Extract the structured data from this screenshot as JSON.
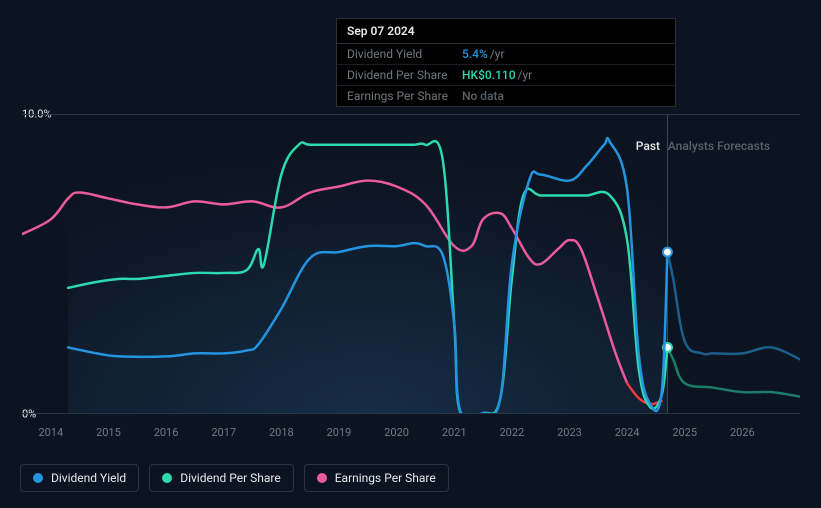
{
  "tooltip": {
    "date": "Sep 07 2024",
    "rows": [
      {
        "label": "Dividend Yield",
        "value": "5.4%",
        "suffix": "/yr",
        "color_class": "val-blue"
      },
      {
        "label": "Dividend Per Share",
        "value": "HK$0.110",
        "suffix": "/yr",
        "color_class": "val-teal"
      },
      {
        "label": "Earnings Per Share",
        "value": "No data",
        "suffix": "",
        "color_class": "val-gray"
      }
    ]
  },
  "chart": {
    "type": "line",
    "background_color": "#0d1421",
    "grid_color": "#2a3644",
    "yaxis": {
      "min": 0,
      "max": 10,
      "ticks": [
        {
          "v": 10,
          "label": "10.0%"
        },
        {
          "v": 0,
          "label": "0%"
        }
      ]
    },
    "xaxis": {
      "min": 2013.5,
      "max": 2027,
      "past_end": 2024.7,
      "ticks": [
        {
          "v": 2014,
          "label": "2014"
        },
        {
          "v": 2015,
          "label": "2015"
        },
        {
          "v": 2016,
          "label": "2016"
        },
        {
          "v": 2017,
          "label": "2017"
        },
        {
          "v": 2018,
          "label": "2018"
        },
        {
          "v": 2019,
          "label": "2019"
        },
        {
          "v": 2020,
          "label": "2020"
        },
        {
          "v": 2021,
          "label": "2021"
        },
        {
          "v": 2022,
          "label": "2022"
        },
        {
          "v": 2023,
          "label": "2023"
        },
        {
          "v": 2024,
          "label": "2024"
        },
        {
          "v": 2025,
          "label": "2025"
        },
        {
          "v": 2026,
          "label": "2026"
        }
      ]
    },
    "period_labels": {
      "past": "Past",
      "forecast": "Analysts Forecasts"
    },
    "series": [
      {
        "name": "Dividend Yield",
        "color": "#2394df",
        "forecast_color": "#1b5f8c",
        "line_width": 2.5,
        "points": [
          [
            2014.3,
            2.2
          ],
          [
            2014.8,
            2.0
          ],
          [
            2015.2,
            1.9
          ],
          [
            2016.0,
            1.9
          ],
          [
            2016.5,
            2.0
          ],
          [
            2017.0,
            2.0
          ],
          [
            2017.4,
            2.1
          ],
          [
            2017.6,
            2.3
          ],
          [
            2018.0,
            3.5
          ],
          [
            2018.5,
            5.2
          ],
          [
            2019.0,
            5.4
          ],
          [
            2019.5,
            5.6
          ],
          [
            2020.0,
            5.6
          ],
          [
            2020.3,
            5.7
          ],
          [
            2020.5,
            5.6
          ],
          [
            2020.8,
            5.3
          ],
          [
            2021.0,
            3.0
          ],
          [
            2021.1,
            0.1
          ],
          [
            2021.5,
            0.0
          ],
          [
            2021.8,
            0.5
          ],
          [
            2022.0,
            5.0
          ],
          [
            2022.3,
            7.8
          ],
          [
            2022.5,
            8.0
          ],
          [
            2023.0,
            7.8
          ],
          [
            2023.3,
            8.3
          ],
          [
            2023.6,
            9.0
          ],
          [
            2023.7,
            9.1
          ],
          [
            2024.0,
            7.5
          ],
          [
            2024.2,
            2.0
          ],
          [
            2024.4,
            0.3
          ],
          [
            2024.6,
            0.7
          ],
          [
            2024.7,
            5.4
          ]
        ],
        "forecast_points": [
          [
            2024.7,
            5.4
          ],
          [
            2024.8,
            4.5
          ],
          [
            2025.0,
            2.4
          ],
          [
            2025.3,
            2.0
          ],
          [
            2025.5,
            2.0
          ],
          [
            2026.0,
            2.0
          ],
          [
            2026.5,
            2.2
          ],
          [
            2027.0,
            1.8
          ]
        ],
        "marker": [
          2024.7,
          5.4
        ]
      },
      {
        "name": "Dividend Per Share",
        "color": "#2dd9b0",
        "forecast_color": "#1a7d67",
        "line_width": 2.5,
        "points": [
          [
            2014.3,
            4.2
          ],
          [
            2014.8,
            4.4
          ],
          [
            2015.2,
            4.5
          ],
          [
            2015.5,
            4.5
          ],
          [
            2016.0,
            4.6
          ],
          [
            2016.5,
            4.7
          ],
          [
            2017.0,
            4.7
          ],
          [
            2017.4,
            4.8
          ],
          [
            2017.6,
            5.5
          ],
          [
            2017.7,
            5.0
          ],
          [
            2018.0,
            8.0
          ],
          [
            2018.3,
            9.0
          ],
          [
            2018.5,
            9.0
          ],
          [
            2019.0,
            9.0
          ],
          [
            2019.5,
            9.0
          ],
          [
            2020.0,
            9.0
          ],
          [
            2020.3,
            9.0
          ],
          [
            2020.5,
            9.0
          ],
          [
            2020.8,
            8.5
          ],
          [
            2021.0,
            3.0
          ],
          [
            2021.1,
            0.05
          ],
          [
            2021.5,
            0.0
          ],
          [
            2021.8,
            0.5
          ],
          [
            2022.0,
            4.5
          ],
          [
            2022.2,
            7.3
          ],
          [
            2022.5,
            7.3
          ],
          [
            2023.0,
            7.3
          ],
          [
            2023.3,
            7.3
          ],
          [
            2023.7,
            7.3
          ],
          [
            2024.0,
            5.8
          ],
          [
            2024.2,
            1.5
          ],
          [
            2024.4,
            0.2
          ],
          [
            2024.6,
            0.6
          ],
          [
            2024.7,
            2.2
          ]
        ],
        "forecast_points": [
          [
            2024.7,
            2.2
          ],
          [
            2024.8,
            1.8
          ],
          [
            2025.0,
            1.0
          ],
          [
            2025.5,
            0.85
          ],
          [
            2026.0,
            0.7
          ],
          [
            2026.5,
            0.7
          ],
          [
            2027.0,
            0.55
          ]
        ],
        "marker": [
          2024.7,
          2.2
        ]
      },
      {
        "name": "Earnings Per Share",
        "color": "#eb5b9d",
        "forecast_color": "#eb3b3b",
        "line_width": 2.5,
        "points": [
          [
            2013.5,
            6.0
          ],
          [
            2014.0,
            6.5
          ],
          [
            2014.3,
            7.2
          ],
          [
            2014.5,
            7.4
          ],
          [
            2015.0,
            7.2
          ],
          [
            2015.5,
            7.0
          ],
          [
            2016.0,
            6.9
          ],
          [
            2016.5,
            7.1
          ],
          [
            2017.0,
            7.0
          ],
          [
            2017.5,
            7.1
          ],
          [
            2018.0,
            6.9
          ],
          [
            2018.5,
            7.4
          ],
          [
            2019.0,
            7.6
          ],
          [
            2019.5,
            7.8
          ],
          [
            2020.0,
            7.6
          ],
          [
            2020.5,
            7.0
          ],
          [
            2021.0,
            5.6
          ],
          [
            2021.3,
            5.6
          ],
          [
            2021.5,
            6.5
          ],
          [
            2021.8,
            6.7
          ],
          [
            2022.0,
            6.2
          ],
          [
            2022.3,
            5.2
          ],
          [
            2022.5,
            5.0
          ],
          [
            2022.8,
            5.5
          ],
          [
            2023.0,
            5.8
          ],
          [
            2023.2,
            5.5
          ],
          [
            2023.5,
            3.8
          ],
          [
            2023.8,
            2.0
          ],
          [
            2024.0,
            1.0
          ]
        ],
        "forecast_points": [
          [
            2024.0,
            1.0
          ],
          [
            2024.2,
            0.5
          ],
          [
            2024.4,
            0.3
          ],
          [
            2024.6,
            0.4
          ]
        ]
      }
    ],
    "legend": [
      {
        "label": "Dividend Yield",
        "color": "#2394df"
      },
      {
        "label": "Dividend Per Share",
        "color": "#2dd9b0"
      },
      {
        "label": "Earnings Per Share",
        "color": "#eb5b9d"
      }
    ]
  }
}
